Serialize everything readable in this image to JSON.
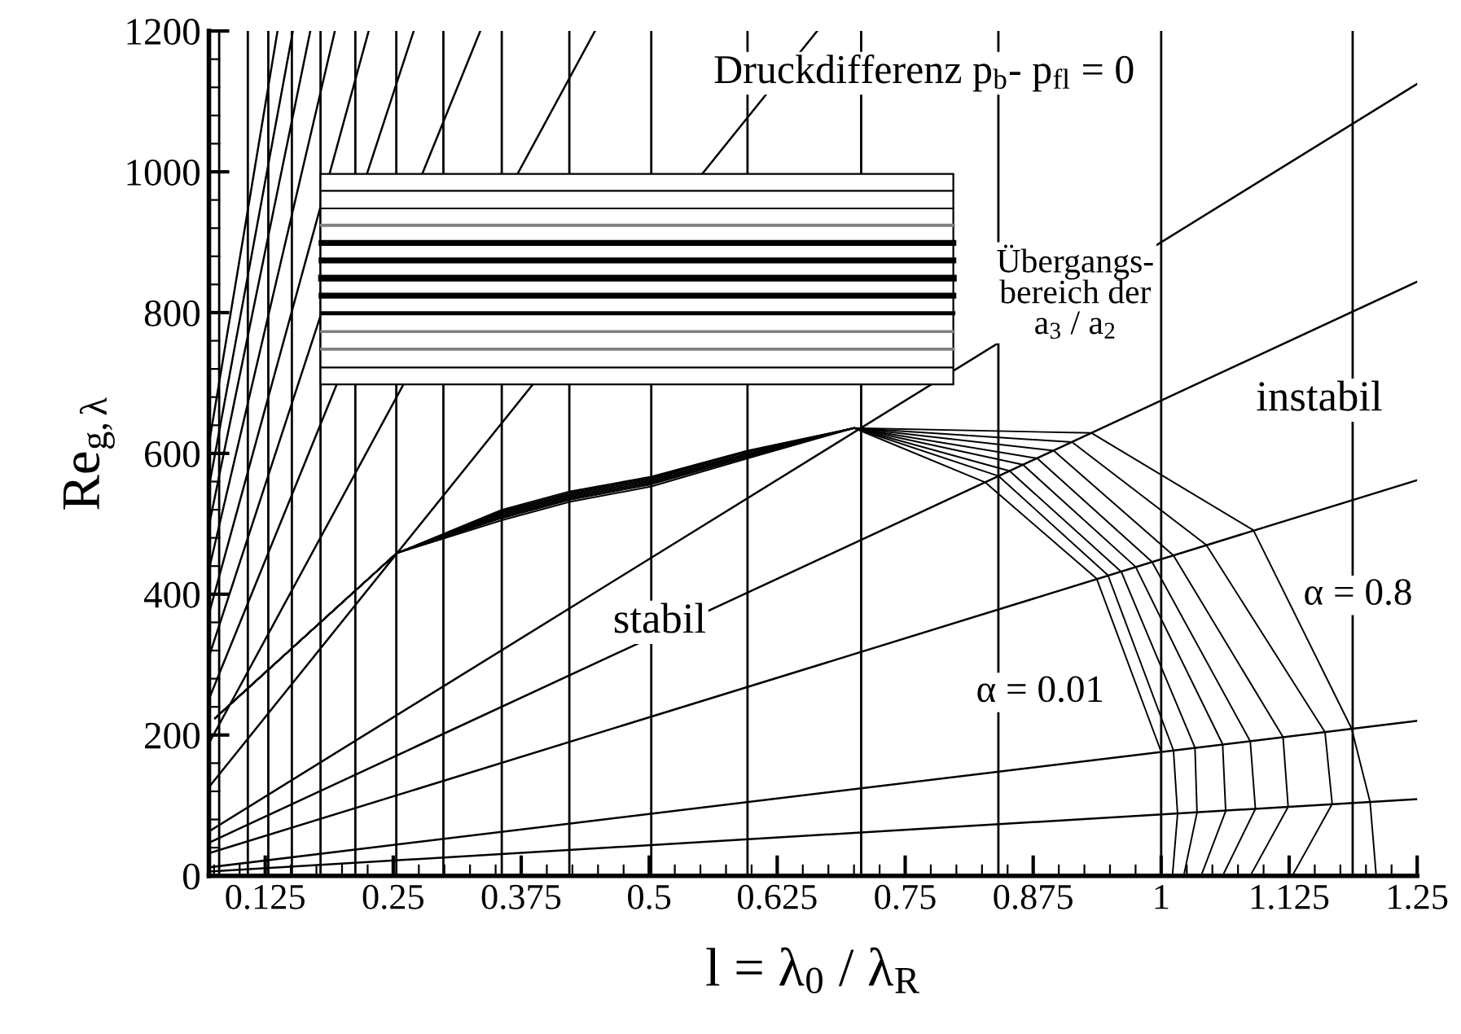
{
  "chart_data": {
    "type": "line",
    "xlabel": "l = λ$_{0}$ / λ$_{R}$",
    "ylabel": "Re$_{g,λ}$",
    "xlim": [
      0.07,
      1.25
    ],
    "xticks": [
      0.125,
      0.25,
      0.375,
      0.5,
      0.625,
      0.75,
      0.875,
      1,
      1.125,
      1.25
    ],
    "ylim": [
      0,
      1200
    ],
    "yticks": [
      0,
      200,
      400,
      600,
      800,
      1000,
      1200
    ],
    "grid": false,
    "legend": false,
    "ref_lines": [
      {
        "axis": "x",
        "value": 0.08,
        "color": "#000000"
      },
      {
        "axis": "x",
        "value": 0.108,
        "color": "#000000"
      },
      {
        "axis": "x",
        "value": 0.128,
        "color": "#000000"
      },
      {
        "axis": "x",
        "value": 0.151,
        "color": "#000000"
      },
      {
        "axis": "x",
        "value": 0.179,
        "color": "#000000"
      },
      {
        "axis": "x",
        "value": 0.213,
        "color": "#000000"
      },
      {
        "axis": "x",
        "value": 0.253,
        "color": "#000000"
      },
      {
        "axis": "x",
        "value": 0.299,
        "color": "#000000"
      },
      {
        "axis": "x",
        "value": 0.356,
        "color": "#000000"
      },
      {
        "axis": "x",
        "value": 0.422,
        "color": "#000000"
      },
      {
        "axis": "x",
        "value": 0.502,
        "color": "#000000"
      },
      {
        "axis": "x",
        "value": 0.596,
        "color": "#000000"
      },
      {
        "axis": "x",
        "value": 0.707,
        "color": "#000000"
      },
      {
        "axis": "x",
        "value": 0.841,
        "color": "#000000"
      },
      {
        "axis": "x",
        "value": 1.0,
        "color": "#000000"
      },
      {
        "axis": "x",
        "value": 1.187,
        "color": "#000000"
      }
    ],
    "series": [
      {
        "color": "#000000",
        "x": [
          0.07,
          1.25
        ],
        "values": [
          6,
          109
        ]
      },
      {
        "color": "#000000",
        "x": [
          0.07,
          1.25
        ],
        "values": [
          12,
          220
        ]
      },
      {
        "color": "#000000",
        "x": [
          0.07,
          1.25
        ],
        "values": [
          32,
          562
        ]
      },
      {
        "color": "#000000",
        "x": [
          0.07,
          1.25
        ],
        "values": [
          47,
          844
        ]
      },
      {
        "color": "#000000",
        "x": [
          0.07,
          1.25
        ],
        "values": [
          63,
          1125
        ]
      },
      {
        "color": "#000000",
        "x": [
          0.07,
          0.664
        ],
        "values": [
          126,
          1200
        ]
      },
      {
        "color": "#000000",
        "x": [
          0.07,
          0.447
        ],
        "values": [
          188,
          1200
        ]
      },
      {
        "color": "#000000",
        "x": [
          0.07,
          0.335
        ],
        "values": [
          251,
          1200
        ]
      },
      {
        "color": "#000000",
        "x": [
          0.07,
          0.27
        ],
        "values": [
          311,
          1200
        ]
      },
      {
        "color": "#000000",
        "x": [
          0.07,
          0.226
        ],
        "values": [
          372,
          1200
        ]
      },
      {
        "color": "#000000",
        "x": [
          0.07,
          0.193
        ],
        "values": [
          435,
          1200
        ]
      },
      {
        "color": "#000000",
        "x": [
          0.07,
          0.169
        ],
        "values": [
          497,
          1200
        ]
      },
      {
        "color": "#000000",
        "x": [
          0.07,
          0.152
        ],
        "values": [
          552,
          1200
        ]
      },
      {
        "color": "#000000",
        "x": [
          0.07,
          0.137
        ],
        "values": [
          613,
          1200
        ]
      },
      {
        "color": "#000000",
        "x": [
          0.076,
          0.253,
          0.356,
          0.422,
          0.502,
          0.596,
          0.7,
          0.828,
          0.937,
          1.0,
          1.0,
          1.0
        ],
        "values": [
          224,
          458,
          520,
          546,
          567,
          604,
          636,
          559,
          422,
          176,
          87,
          0
        ]
      },
      {
        "color": "#000000",
        "x": [
          0.076,
          0.253,
          0.356,
          0.422,
          0.502,
          0.596,
          0.7,
          0.841,
          0.948,
          1.012,
          1.016,
          1.011
        ],
        "values": [
          224,
          458,
          518,
          544,
          566,
          603,
          636,
          568,
          427,
          178,
          88,
          0
        ]
      },
      {
        "color": "#000000",
        "x": [
          0.076,
          0.253,
          0.356,
          0.422,
          0.502,
          0.596,
          0.7,
          0.852,
          0.961,
          1.033,
          1.035,
          1.022
        ],
        "values": [
          224,
          458,
          516,
          542,
          564,
          602,
          636,
          575,
          432,
          182,
          90,
          0
        ]
      },
      {
        "color": "#000000",
        "x": [
          0.076,
          0.253,
          0.356,
          0.422,
          0.502,
          0.596,
          0.7,
          0.865,
          0.975,
          1.06,
          1.063,
          1.039
        ],
        "values": [
          224,
          458,
          514,
          540,
          562,
          600,
          636,
          584,
          439,
          187,
          92,
          0
        ]
      },
      {
        "color": "#000000",
        "x": [
          0.076,
          0.253,
          0.356,
          0.422,
          0.502,
          0.596,
          0.7,
          0.879,
          0.991,
          1.087,
          1.092,
          1.06
        ],
        "values": [
          224,
          458,
          512,
          538,
          560,
          599,
          636,
          593,
          446,
          191,
          95,
          0
        ]
      },
      {
        "color": "#000000",
        "x": [
          0.076,
          0.253,
          0.356,
          0.422,
          0.502,
          0.596,
          0.7,
          0.895,
          1.012,
          1.119,
          1.124,
          1.087
        ],
        "values": [
          224,
          458,
          510,
          536,
          558,
          597,
          636,
          604,
          455,
          197,
          98,
          0
        ]
      },
      {
        "color": "#000000",
        "x": [
          0.076,
          0.253,
          0.356,
          0.422,
          0.502,
          0.596,
          0.7,
          0.913,
          1.044,
          1.16,
          1.167,
          1.128
        ],
        "values": [
          224,
          458,
          508,
          534,
          556,
          595,
          636,
          616,
          470,
          204,
          102,
          0
        ]
      },
      {
        "color": "#000000",
        "x": [
          0.076,
          0.253,
          0.356,
          0.422,
          0.502,
          0.596,
          0.7,
          0.932,
          1.09,
          1.186,
          1.204,
          1.21
        ],
        "values": [
          224,
          458,
          505,
          531,
          553,
          593,
          636,
          629,
          491,
          209,
          105,
          0
        ]
      },
      {
        "color": "#000000",
        "x": [
          0.18,
          0.797
        ],
        "values": [
          973,
          973
        ]
      },
      {
        "color": "#000000",
        "x": [
          0.18,
          0.797
        ],
        "values": [
          948,
          948
        ]
      },
      {
        "color": "#808080",
        "x": [
          0.18,
          0.797
        ],
        "values": [
          924,
          924
        ]
      },
      {
        "color": "#000000",
        "x": [
          0.18,
          0.797
        ],
        "values": [
          899,
          899
        ]
      },
      {
        "color": "#000000",
        "x": [
          0.18,
          0.797
        ],
        "values": [
          874,
          874
        ]
      },
      {
        "color": "#000000",
        "x": [
          0.18,
          0.797
        ],
        "values": [
          849,
          849
        ]
      },
      {
        "color": "#000000",
        "x": [
          0.18,
          0.797
        ],
        "values": [
          824,
          824
        ]
      },
      {
        "color": "#000000",
        "x": [
          0.18,
          0.797
        ],
        "values": [
          799,
          799
        ]
      },
      {
        "color": "#808080",
        "x": [
          0.18,
          0.797
        ],
        "values": [
          773,
          773
        ]
      },
      {
        "color": "#808080",
        "x": [
          0.18,
          0.797
        ],
        "values": [
          748,
          748
        ]
      },
      {
        "color": "#000000",
        "x": [
          0.18,
          0.797
        ],
        "values": [
          722,
          722
        ]
      }
    ],
    "annotations": [
      "Druckdifferenz p$_{b}$- p$_{fl}$ = 0",
      "Übergangs-\nbereich der\na$_{3}$ / a$_{2}$",
      "instabil",
      "stabil",
      "α = 0.01",
      "α = 0.8"
    ]
  }
}
